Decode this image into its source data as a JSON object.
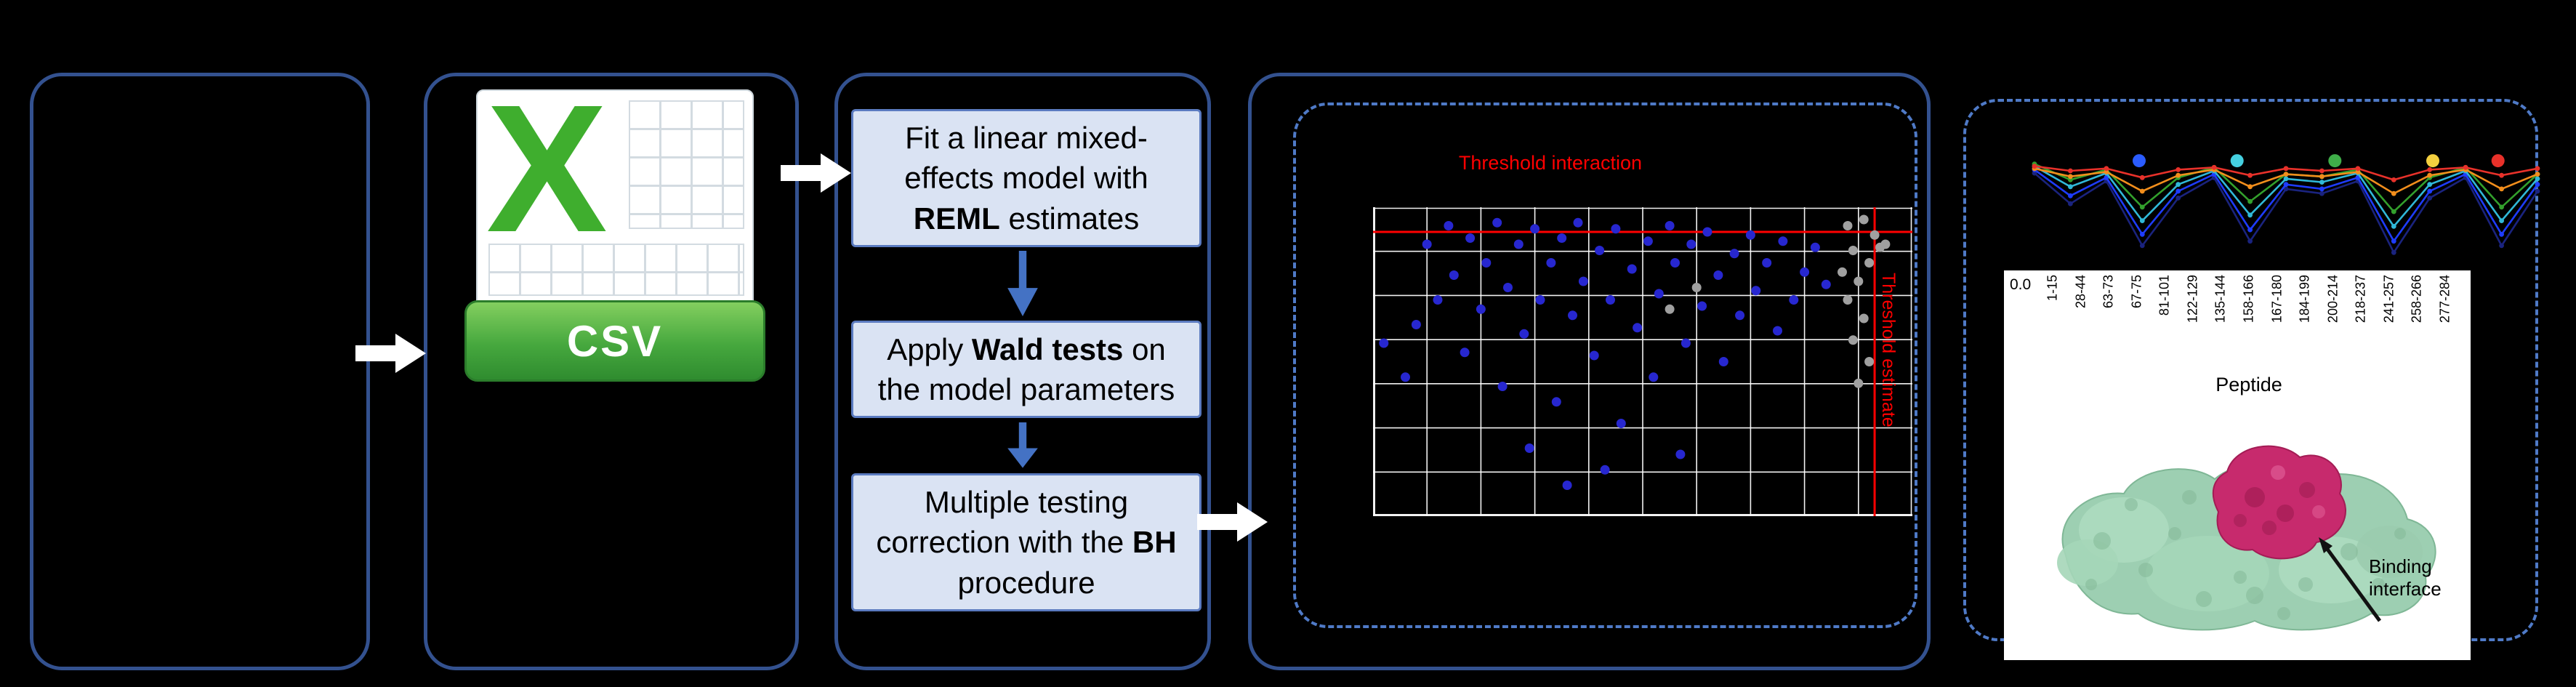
{
  "colors": {
    "background": "#000000",
    "panel_border": "#33518f",
    "dashed_border": "#4f7ac7",
    "step_fill": "#dae3f3",
    "step_border": "#5b7bc0",
    "step_arrow": "#4472c4",
    "flow_arrow": "#ffffff",
    "threshold_red": "#ff0000",
    "csv_green": "#3fae2e",
    "protein_green": "#9dcfb2",
    "protein_magenta": "#c72a6d"
  },
  "csv_icon": {
    "letter": "X",
    "label": "CSV"
  },
  "pipeline": {
    "steps": [
      {
        "pre": "Fit a linear mixed-effects model with ",
        "bold": "REML",
        "post": " estimates"
      },
      {
        "pre": "Apply ",
        "bold": "Wald tests",
        "post": " on the model parameters"
      },
      {
        "pre": "Multiple testing correction with the ",
        "bold": "BH",
        "post": " procedure"
      }
    ]
  },
  "annotations": {
    "binding_interface": "Binding interface"
  },
  "chart_data": [
    {
      "type": "scatter",
      "title": "Threshold interaction",
      "right_label": "Threshold estimate",
      "grid": {
        "cols": 10,
        "rows": 7,
        "color": "#ffffff"
      },
      "thresholds": {
        "h_y_pct": 8,
        "v_x_pct": 93,
        "color": "#ff0000"
      },
      "series": [
        {
          "name": "blue-points",
          "color": "#2727d0",
          "points_pct": [
            [
              2,
              44
            ],
            [
              6,
              55
            ],
            [
              8,
              38
            ],
            [
              10,
              12
            ],
            [
              12,
              30
            ],
            [
              14,
              6
            ],
            [
              15,
              22
            ],
            [
              17,
              47
            ],
            [
              18,
              10
            ],
            [
              20,
              33
            ],
            [
              21,
              18
            ],
            [
              23,
              5
            ],
            [
              24,
              58
            ],
            [
              25,
              26
            ],
            [
              27,
              12
            ],
            [
              28,
              41
            ],
            [
              29,
              78
            ],
            [
              30,
              7
            ],
            [
              31,
              30
            ],
            [
              33,
              18
            ],
            [
              34,
              63
            ],
            [
              35,
              10
            ],
            [
              36,
              90
            ],
            [
              37,
              35
            ],
            [
              38,
              5
            ],
            [
              39,
              24
            ],
            [
              41,
              48
            ],
            [
              42,
              14
            ],
            [
              43,
              85
            ],
            [
              44,
              30
            ],
            [
              45,
              7
            ],
            [
              46,
              70
            ],
            [
              48,
              20
            ],
            [
              49,
              39
            ],
            [
              51,
              11
            ],
            [
              52,
              55
            ],
            [
              53,
              28
            ],
            [
              55,
              6
            ],
            [
              56,
              18
            ],
            [
              57,
              80
            ],
            [
              58,
              44
            ],
            [
              59,
              12
            ],
            [
              61,
              32
            ],
            [
              62,
              8
            ],
            [
              64,
              22
            ],
            [
              65,
              50
            ],
            [
              67,
              15
            ],
            [
              68,
              35
            ],
            [
              70,
              9
            ],
            [
              71,
              27
            ],
            [
              73,
              18
            ],
            [
              75,
              40
            ],
            [
              76,
              11
            ],
            [
              78,
              30
            ],
            [
              80,
              21
            ],
            [
              82,
              13
            ],
            [
              84,
              25
            ]
          ]
        },
        {
          "name": "gray-points",
          "color": "#a0a0a0",
          "points_pct": [
            [
              88,
              6
            ],
            [
              91,
              4
            ],
            [
              93,
              9
            ],
            [
              95,
              12
            ],
            [
              89,
              14
            ],
            [
              92,
              18
            ],
            [
              90,
              24
            ],
            [
              88,
              30
            ],
            [
              91,
              36
            ],
            [
              89,
              43
            ],
            [
              92,
              50
            ],
            [
              90,
              57
            ],
            [
              60,
              26
            ],
            [
              55,
              33
            ],
            [
              94,
              13
            ],
            [
              87,
              21
            ]
          ]
        }
      ]
    },
    {
      "type": "line",
      "x_labels": [
        "1-15",
        "28-44",
        "63-73",
        "67-75",
        "81-101",
        "122-129",
        "135-144",
        "158-166",
        "167-180",
        "184-199",
        "200-214",
        "218-237",
        "241-257",
        "258-266",
        "277-284"
      ],
      "xlabel": "Peptide",
      "y_tick_visible": "0.0",
      "marker_dots": {
        "y_pct": 12,
        "x_pct": [
          23,
          41,
          59,
          77,
          89
        ],
        "colors": [
          "#2b5cff",
          "#45d0e0",
          "#3fae49",
          "#f4d03f",
          "#e8312a"
        ]
      },
      "series": [
        {
          "name": "dark-blue",
          "color": "#1a237e",
          "values": [
            0.82,
            0.55,
            0.75,
            0.18,
            0.6,
            0.78,
            0.22,
            0.68,
            0.64,
            0.75,
            0.12,
            0.6,
            0.78,
            0.18,
            0.66
          ]
        },
        {
          "name": "blue",
          "color": "#1e3cff",
          "values": [
            0.85,
            0.62,
            0.78,
            0.28,
            0.66,
            0.81,
            0.32,
            0.72,
            0.68,
            0.78,
            0.22,
            0.66,
            0.81,
            0.28,
            0.72
          ]
        },
        {
          "name": "cyan",
          "color": "#30b8d8",
          "values": [
            0.88,
            0.7,
            0.82,
            0.4,
            0.72,
            0.84,
            0.45,
            0.77,
            0.74,
            0.82,
            0.35,
            0.72,
            0.84,
            0.4,
            0.77
          ]
        },
        {
          "name": "green",
          "color": "#33a02c",
          "values": [
            0.9,
            0.76,
            0.85,
            0.52,
            0.78,
            0.87,
            0.57,
            0.81,
            0.79,
            0.85,
            0.48,
            0.78,
            0.87,
            0.52,
            0.81
          ]
        },
        {
          "name": "orange",
          "color": "#f28e1c",
          "values": [
            0.86,
            0.79,
            0.83,
            0.66,
            0.8,
            0.85,
            0.7,
            0.81,
            0.79,
            0.83,
            0.64,
            0.8,
            0.85,
            0.68,
            0.81
          ]
        },
        {
          "name": "red",
          "color": "#e8312a",
          "values": [
            0.88,
            0.84,
            0.86,
            0.78,
            0.85,
            0.87,
            0.8,
            0.86,
            0.84,
            0.86,
            0.76,
            0.85,
            0.87,
            0.8,
            0.86
          ]
        }
      ]
    }
  ]
}
